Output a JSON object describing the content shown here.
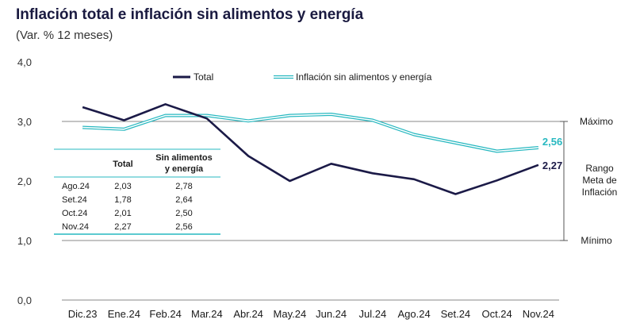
{
  "title": "Inflación total e inflación sin alimentos y energía",
  "subtitle": "(Var. % 12 meses)",
  "chart_data": {
    "type": "line",
    "title": "Inflación total e inflación sin alimentos y energía",
    "subtitle": "(Var. % 12 meses)",
    "categories": [
      "Dic.23",
      "Ene.24",
      "Feb.24",
      "Mar.24",
      "Abr.24",
      "May.24",
      "Jun.24",
      "Jul.24",
      "Ago.24",
      "Set.24",
      "Oct.24",
      "Nov.24"
    ],
    "ylim": [
      0,
      4
    ],
    "yticks": [
      "0,0",
      "1,0",
      "2,0",
      "3,0",
      "4,0"
    ],
    "legend_position": "top-center",
    "series": [
      {
        "name": "Total",
        "color": "#1b1a47",
        "values": [
          3.24,
          3.02,
          3.29,
          3.05,
          2.42,
          2.0,
          2.29,
          2.13,
          2.03,
          1.78,
          2.01,
          2.27
        ],
        "end_label": "2,27"
      },
      {
        "name": "Inflación sin alimentos y energía",
        "color": "#27b8c0",
        "values": [
          2.9,
          2.87,
          3.1,
          3.1,
          3.01,
          3.1,
          3.12,
          3.02,
          2.78,
          2.64,
          2.5,
          2.56
        ],
        "end_label": "2,56"
      }
    ],
    "target_range": {
      "max": 3.0,
      "min": 1.0,
      "max_label": "Máximo",
      "min_label": "Mínimo",
      "range_label": [
        "Rango",
        "Meta de",
        "Inflación"
      ]
    }
  },
  "table": {
    "headers": [
      "Total",
      "Sin alimentos",
      "y energía"
    ],
    "rows": [
      {
        "month": "Ago.24",
        "total": "2,03",
        "core": "2,78"
      },
      {
        "month": "Set.24",
        "total": "1,78",
        "core": "2,64"
      },
      {
        "month": "Oct.24",
        "total": "2,01",
        "core": "2,50"
      },
      {
        "month": "Nov.24",
        "total": "2,27",
        "core": "2,56"
      }
    ]
  }
}
